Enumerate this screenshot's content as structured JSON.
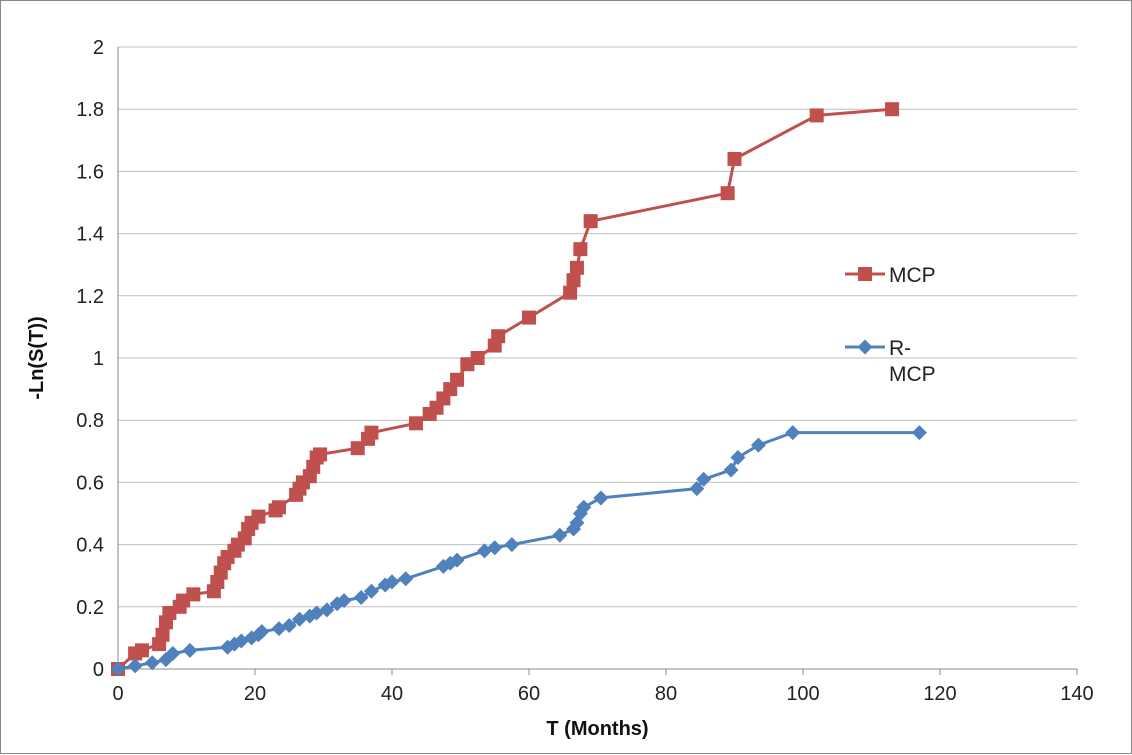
{
  "chart_data": {
    "type": "line",
    "title": "",
    "xlabel": "T (Months)",
    "ylabel": "-Ln(S(T))",
    "xlim": [
      0,
      140
    ],
    "ylim": [
      0,
      2
    ],
    "x_ticks": [
      0,
      20,
      40,
      60,
      80,
      100,
      120,
      140
    ],
    "y_ticks": [
      0,
      0.2,
      0.4,
      0.6,
      0.8,
      1,
      1.2,
      1.4,
      1.6,
      1.8,
      2
    ],
    "grid": "horizontal",
    "legend_position": "right",
    "series": [
      {
        "name": "MCP",
        "color": "#C0504D",
        "marker": "square",
        "points": [
          [
            0,
            0
          ],
          [
            2.5,
            0.05
          ],
          [
            3.5,
            0.06
          ],
          [
            6,
            0.08
          ],
          [
            6.5,
            0.11
          ],
          [
            7,
            0.15
          ],
          [
            7.5,
            0.18
          ],
          [
            9,
            0.2
          ],
          [
            9.5,
            0.22
          ],
          [
            11,
            0.24
          ],
          [
            14,
            0.25
          ],
          [
            14.5,
            0.28
          ],
          [
            15,
            0.31
          ],
          [
            15.5,
            0.34
          ],
          [
            16,
            0.36
          ],
          [
            17,
            0.38
          ],
          [
            17.5,
            0.4
          ],
          [
            18.5,
            0.42
          ],
          [
            19,
            0.45
          ],
          [
            19.5,
            0.47
          ],
          [
            20.5,
            0.49
          ],
          [
            23,
            0.51
          ],
          [
            23.5,
            0.52
          ],
          [
            26,
            0.56
          ],
          [
            26.5,
            0.58
          ],
          [
            27,
            0.6
          ],
          [
            28,
            0.62
          ],
          [
            28.5,
            0.65
          ],
          [
            29,
            0.68
          ],
          [
            29.5,
            0.69
          ],
          [
            35,
            0.71
          ],
          [
            36.5,
            0.74
          ],
          [
            37,
            0.76
          ],
          [
            43.5,
            0.79
          ],
          [
            45.5,
            0.82
          ],
          [
            46.5,
            0.84
          ],
          [
            47.5,
            0.87
          ],
          [
            48.5,
            0.9
          ],
          [
            49.5,
            0.93
          ],
          [
            51,
            0.98
          ],
          [
            52.5,
            1.0
          ],
          [
            55,
            1.04
          ],
          [
            55.5,
            1.07
          ],
          [
            60,
            1.13
          ],
          [
            66,
            1.21
          ],
          [
            66.5,
            1.25
          ],
          [
            67,
            1.29
          ],
          [
            67.5,
            1.35
          ],
          [
            69,
            1.44
          ],
          [
            89,
            1.53
          ],
          [
            90,
            1.64
          ],
          [
            102,
            1.78
          ],
          [
            113,
            1.8
          ]
        ]
      },
      {
        "name": "R-MCP",
        "color": "#4F81BD",
        "marker": "diamond",
        "points": [
          [
            0,
            0
          ],
          [
            2.5,
            0.01
          ],
          [
            5,
            0.02
          ],
          [
            7,
            0.03
          ],
          [
            8,
            0.05
          ],
          [
            10.5,
            0.06
          ],
          [
            16,
            0.07
          ],
          [
            17,
            0.08
          ],
          [
            18,
            0.09
          ],
          [
            19.5,
            0.1
          ],
          [
            20.5,
            0.11
          ],
          [
            21,
            0.12
          ],
          [
            23.5,
            0.13
          ],
          [
            25,
            0.14
          ],
          [
            26.5,
            0.16
          ],
          [
            28,
            0.17
          ],
          [
            29,
            0.18
          ],
          [
            30.5,
            0.19
          ],
          [
            32,
            0.21
          ],
          [
            33,
            0.22
          ],
          [
            35.5,
            0.23
          ],
          [
            37,
            0.25
          ],
          [
            39,
            0.27
          ],
          [
            40,
            0.28
          ],
          [
            42,
            0.29
          ],
          [
            47.5,
            0.33
          ],
          [
            48.5,
            0.34
          ],
          [
            49.5,
            0.35
          ],
          [
            53.5,
            0.38
          ],
          [
            55,
            0.39
          ],
          [
            57.5,
            0.4
          ],
          [
            64.5,
            0.43
          ],
          [
            66.5,
            0.45
          ],
          [
            67,
            0.47
          ],
          [
            67.5,
            0.5
          ],
          [
            68,
            0.52
          ],
          [
            70.5,
            0.55
          ],
          [
            84.5,
            0.58
          ],
          [
            85.5,
            0.61
          ],
          [
            89.5,
            0.64
          ],
          [
            90.5,
            0.68
          ],
          [
            93.5,
            0.72
          ],
          [
            98.5,
            0.76
          ],
          [
            117,
            0.76
          ]
        ]
      }
    ],
    "legend": [
      {
        "lines": [
          "MCP"
        ],
        "color": "#C0504D",
        "marker": "square"
      },
      {
        "lines": [
          "R-",
          "MCP"
        ],
        "color": "#4F81BD",
        "marker": "diamond"
      }
    ]
  }
}
